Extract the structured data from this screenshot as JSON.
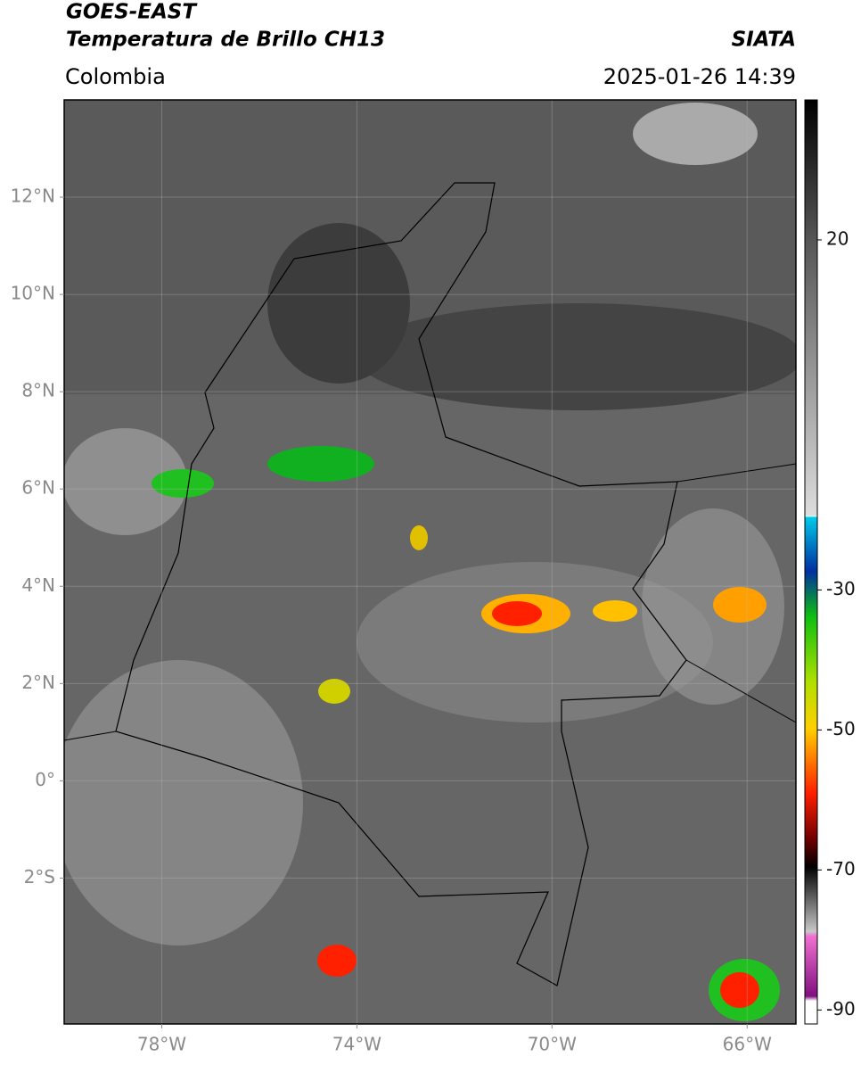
{
  "header": {
    "title": "GOES-EAST",
    "subtitle": "Temperatura de Brillo CH13",
    "source": "SIATA",
    "region": "Colombia",
    "timestamp": "2025-01-26 14:39"
  },
  "map": {
    "xlim": [
      -80,
      -65
    ],
    "ylim": [
      -5,
      14
    ],
    "xticks": [
      {
        "value": -78,
        "label": "78°W"
      },
      {
        "value": -74,
        "label": "74°W"
      },
      {
        "value": -70,
        "label": "70°W"
      },
      {
        "value": -66,
        "label": "66°W"
      }
    ],
    "yticks": [
      {
        "value": 12,
        "label": "12°N"
      },
      {
        "value": 10,
        "label": "10°N"
      },
      {
        "value": 8,
        "label": "8°N"
      },
      {
        "value": 6,
        "label": "6°N"
      },
      {
        "value": 4,
        "label": "4°N"
      },
      {
        "value": 2,
        "label": "2°N"
      },
      {
        "value": 0,
        "label": "0°"
      },
      {
        "value": -2,
        "label": "2°S"
      }
    ],
    "grid": true
  },
  "colorbar": {
    "lim": [
      -92,
      40
    ],
    "ticks": [
      20,
      -30,
      -50,
      -70,
      -90
    ]
  }
}
